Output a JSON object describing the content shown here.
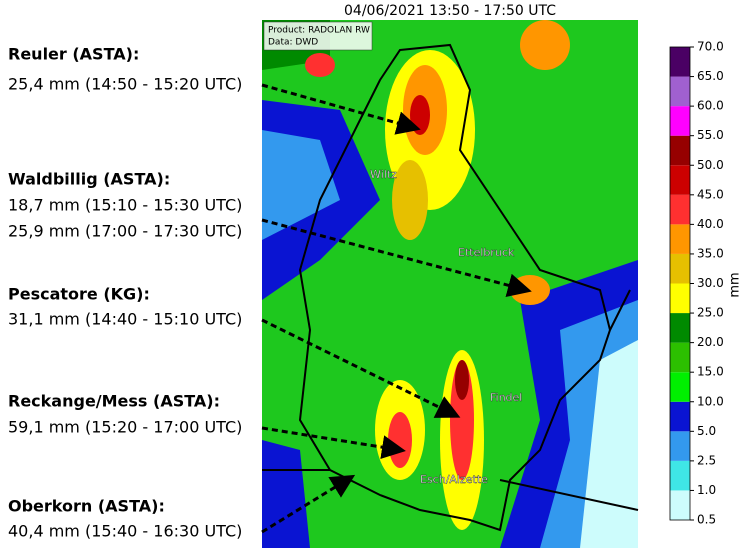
{
  "title": "04/06/2021 13:50 - 17:50 UTC",
  "product": {
    "lines": [
      "Product: RADOLAN RW",
      "Data: DWD"
    ]
  },
  "stations": [
    {
      "name": "Reuler (ASTA):",
      "lines": [
        "25,4 mm (14:50 - 15:20 UTC)"
      ]
    },
    {
      "name": "Waldbillig (ASTA):",
      "lines": [
        "18,7 mm (15:10 - 15:30 UTC)",
        "25,9 mm (17:00 - 17:30 UTC)"
      ]
    },
    {
      "name": "Pescatore (KG):",
      "lines": [
        "31,1 mm (14:40 - 15:10 UTC)"
      ]
    },
    {
      "name": "Reckange/Mess (ASTA):",
      "lines": [
        "59,1 mm (15:20 - 17:00 UTC)"
      ]
    },
    {
      "name": "Oberkorn (ASTA):",
      "lines": [
        "40,4 mm (15:40 - 16:30 UTC)"
      ]
    }
  ],
  "places": [
    "Wiltz",
    "Ettelbruck",
    "Findel",
    "Esch/Alzette"
  ],
  "colorbar": {
    "label": "mm",
    "ticks": [
      {
        "value": 0.5,
        "label": "0.5"
      },
      {
        "value": 1,
        "label": "1.0"
      },
      {
        "value": 2.5,
        "label": "2.5"
      },
      {
        "value": 5,
        "label": "5.0"
      },
      {
        "value": 10,
        "label": "10.0"
      },
      {
        "value": 15,
        "label": "15.0"
      },
      {
        "value": 20,
        "label": "20.0"
      },
      {
        "value": 25,
        "label": "25.0"
      },
      {
        "value": 30,
        "label": "30.0"
      },
      {
        "value": 35,
        "label": "35.0"
      },
      {
        "value": 40,
        "label": "40.0"
      },
      {
        "value": 45,
        "label": "45.0"
      },
      {
        "value": 50,
        "label": "50.0"
      },
      {
        "value": 55,
        "label": "55.0"
      },
      {
        "value": 60,
        "label": "60.0"
      },
      {
        "value": 65,
        "label": "65.0"
      },
      {
        "value": 70,
        "label": "70.0"
      }
    ],
    "colors": [
      "#cdfcfc",
      "#3fe6e6",
      "#3399ee",
      "#0a14d2",
      "#00f000",
      "#2cc000",
      "#008a00",
      "#ffff00",
      "#e6c000",
      "#ff9600",
      "#ff3030",
      "#cc0000",
      "#960000",
      "#ff00ff",
      "#a060d0",
      "#4a0064"
    ]
  }
}
